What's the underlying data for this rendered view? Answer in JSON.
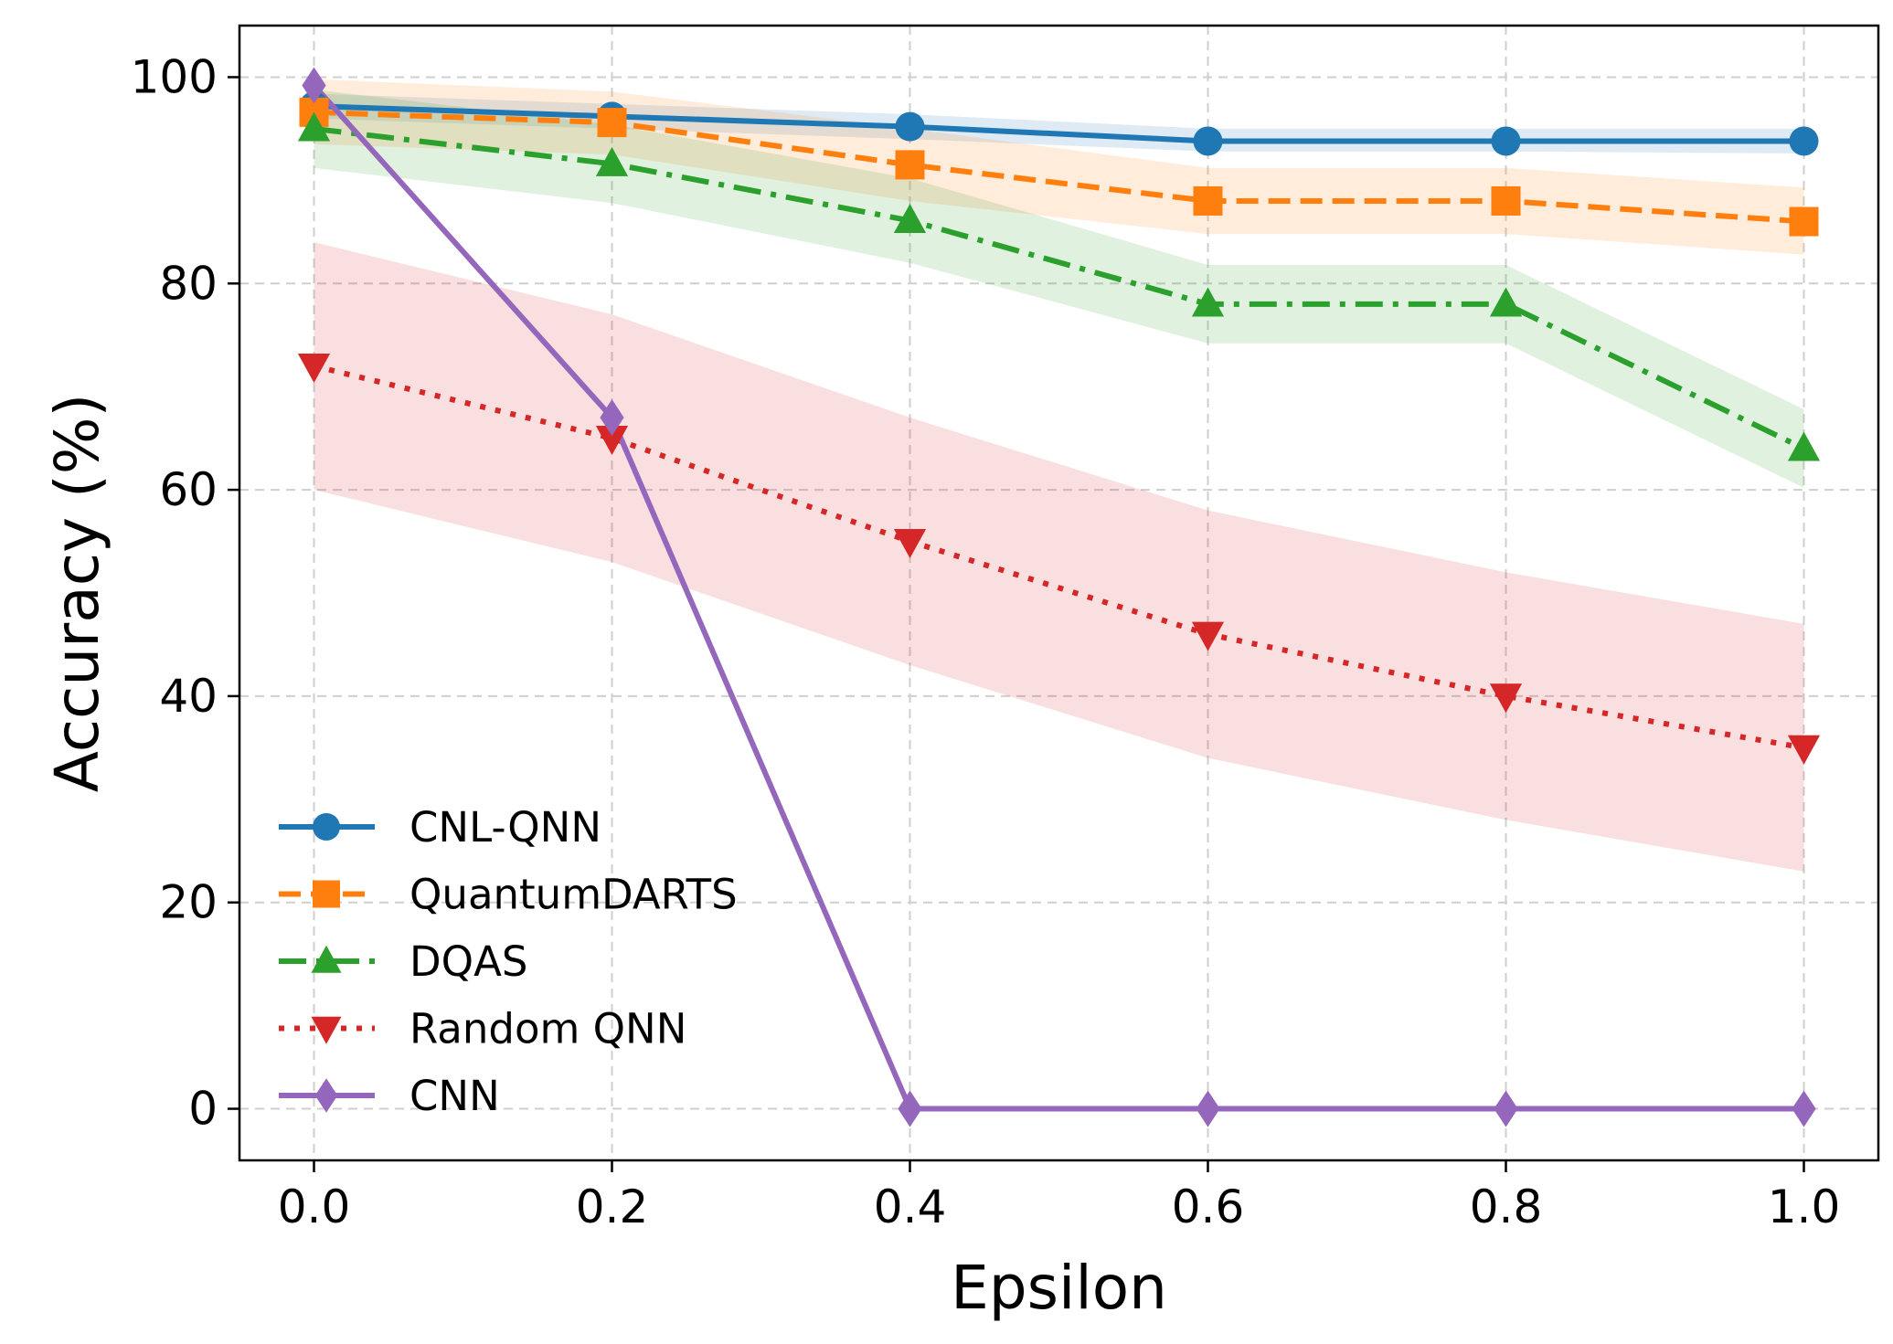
{
  "chart_data": {
    "type": "line",
    "xlabel": "Epsilon",
    "ylabel": "Accuracy (%)",
    "x": [
      0.0,
      0.2,
      0.4,
      0.6,
      0.8,
      1.0
    ],
    "xlim": [
      -0.05,
      1.05
    ],
    "ylim": [
      -5,
      105
    ],
    "xticks": [
      0.0,
      0.2,
      0.4,
      0.6,
      0.8,
      1.0
    ],
    "xtick_labels": [
      "0.0",
      "0.2",
      "0.4",
      "0.6",
      "0.8",
      "1.0"
    ],
    "yticks": [
      0,
      20,
      40,
      60,
      80,
      100
    ],
    "ytick_labels": [
      "0",
      "20",
      "40",
      "60",
      "80",
      "100"
    ],
    "grid": true,
    "legend_position": "lower-left",
    "series": [
      {
        "name": "CNL-QNN",
        "color": "#1f77b4",
        "dash": "solid",
        "marker": "circle",
        "values": [
          97.2,
          96.2,
          95.2,
          93.8,
          93.8,
          93.8
        ],
        "band_lower": [
          96.0,
          95.0,
          94.0,
          92.8,
          92.8,
          92.6
        ],
        "band_upper": [
          98.4,
          97.4,
          96.4,
          95.0,
          95.0,
          95.0
        ]
      },
      {
        "name": "QuantumDARTS",
        "color": "#ff7f0e",
        "dash": "dashed",
        "marker": "square",
        "values": [
          96.6,
          95.6,
          91.5,
          88.0,
          88.0,
          86.0
        ],
        "band_lower": [
          93.5,
          92.5,
          88.0,
          84.8,
          84.8,
          82.8
        ],
        "band_upper": [
          99.8,
          98.6,
          95.0,
          91.2,
          91.2,
          89.3
        ]
      },
      {
        "name": "DQAS",
        "color": "#2ca02c",
        "dash": "dashdot",
        "marker": "triangle-up",
        "values": [
          95.0,
          91.6,
          86.1,
          78.0,
          78.0,
          64.0
        ],
        "band_lower": [
          91.2,
          87.8,
          82.0,
          74.2,
          74.2,
          60.2
        ],
        "band_upper": [
          98.8,
          95.4,
          90.2,
          81.8,
          81.8,
          67.8
        ]
      },
      {
        "name": "Random QNN",
        "color": "#d62728",
        "dash": "dotted",
        "marker": "triangle-down",
        "values": [
          72.0,
          65.0,
          55.0,
          46.0,
          40.0,
          35.0
        ],
        "band_lower": [
          60.0,
          53.0,
          43.0,
          34.0,
          28.0,
          23.0
        ],
        "band_upper": [
          84.0,
          77.0,
          67.0,
          58.0,
          52.0,
          47.0
        ]
      },
      {
        "name": "CNN",
        "color": "#9467bd",
        "dash": "solid",
        "marker": "diamond",
        "values": [
          99.2,
          67.0,
          0.0,
          0.0,
          0.0,
          0.0
        ]
      }
    ]
  }
}
